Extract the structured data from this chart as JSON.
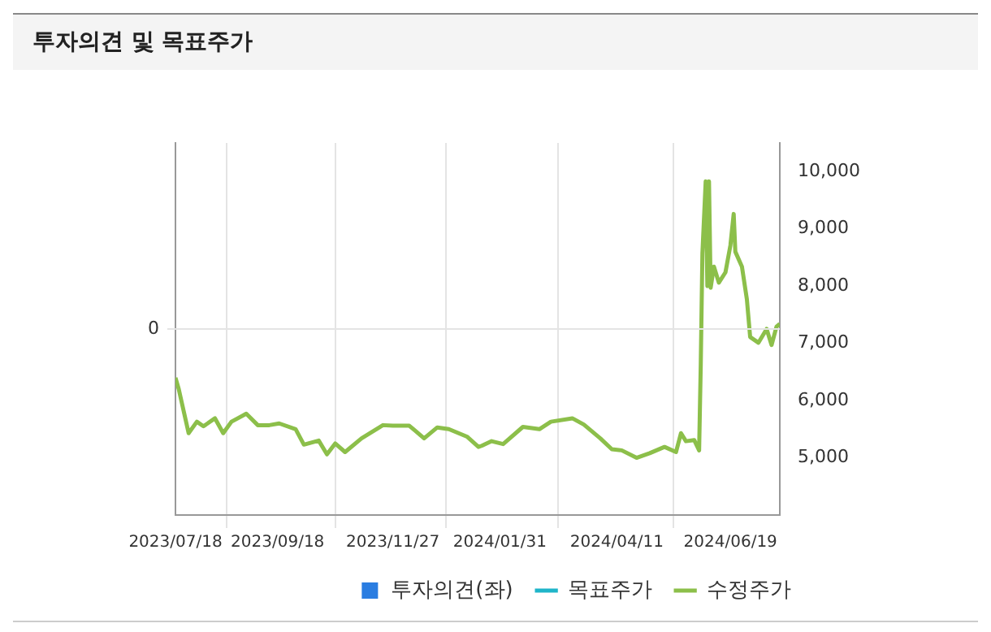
{
  "chart_data": {
    "type": "line",
    "title": "투자의견 및 목표주가",
    "xlim": [
      "2023-07-18",
      "2024-07-19"
    ],
    "xticks": [
      {
        "value": "2023-07-18",
        "label": "2023/07/18"
      },
      {
        "value": "2023-09-18",
        "label": "2023/09/18"
      },
      {
        "value": "2023-11-27",
        "label": "2023/11/27"
      },
      {
        "value": "2024-01-31",
        "label": "2024/01/31"
      },
      {
        "value": "2024-04-11",
        "label": "2024/04/11"
      },
      {
        "value": "2024-06-19",
        "label": "2024/06/19"
      }
    ],
    "annotations": [
      "0"
    ],
    "y2lim": [
      4000,
      10500
    ],
    "y2ticks": [
      {
        "value": 5000,
        "label": "5,000"
      },
      {
        "value": 6000,
        "label": "6,000"
      },
      {
        "value": 7000,
        "label": "7,000"
      },
      {
        "value": 8000,
        "label": "8,000"
      },
      {
        "value": 9000,
        "label": "9,000"
      },
      {
        "value": 10000,
        "label": "10,000"
      }
    ],
    "grid": "x",
    "legend": "bottom",
    "marker": "none",
    "series": [
      {
        "name": "투자의견(좌)",
        "type": "bar",
        "axis": "y",
        "color": "#2a7de1"
      },
      {
        "name": "목표주가",
        "type": "line",
        "axis": "y2",
        "color": "#1fb5c9"
      },
      {
        "name": "수정주가",
        "axis": "y2",
        "color": "#8cbf4a",
        "x": [
          "2023-07-18",
          "2023-07-20",
          "2023-07-26",
          "2023-07-31",
          "2023-08-04",
          "2023-08-11",
          "2023-08-16",
          "2023-08-21",
          "2023-08-30",
          "2023-09-06",
          "2023-09-13",
          "2023-09-19",
          "2023-09-29",
          "2023-10-04",
          "2023-10-13",
          "2023-10-18",
          "2023-10-23",
          "2023-10-29",
          "2023-11-08",
          "2023-11-21",
          "2023-11-27",
          "2023-12-07",
          "2023-12-16",
          "2023-12-24",
          "2023-12-31",
          "2024-01-11",
          "2024-01-18",
          "2024-01-20",
          "2024-01-26",
          "2024-02-02",
          "2024-02-14",
          "2024-02-24",
          "2024-03-02",
          "2024-03-15",
          "2024-03-22",
          "2024-04-01",
          "2024-04-08",
          "2024-04-14",
          "2024-04-23",
          "2024-05-01",
          "2024-05-10",
          "2024-05-17",
          "2024-05-20",
          "2024-05-23",
          "2024-05-28",
          "2024-05-31",
          "2024-06-01",
          "2024-06-02",
          "2024-06-04",
          "2024-06-05",
          "2024-06-06",
          "2024-06-07",
          "2024-06-09",
          "2024-06-12",
          "2024-06-16",
          "2024-06-19",
          "2024-06-21",
          "2024-06-22",
          "2024-06-26",
          "2024-06-29",
          "2024-07-01",
          "2024-07-06",
          "2024-07-11",
          "2024-07-14",
          "2024-07-17",
          "2024-07-19"
        ],
        "values": [
          6400,
          6200,
          5430,
          5630,
          5550,
          5690,
          5430,
          5630,
          5770,
          5570,
          5570,
          5600,
          5500,
          5230,
          5300,
          5060,
          5250,
          5100,
          5340,
          5570,
          5560,
          5560,
          5340,
          5530,
          5500,
          5370,
          5190,
          5210,
          5290,
          5240,
          5540,
          5500,
          5630,
          5690,
          5580,
          5340,
          5150,
          5130,
          5000,
          5080,
          5190,
          5100,
          5430,
          5290,
          5310,
          5130,
          6630,
          8570,
          9830,
          8000,
          9830,
          7970,
          8340,
          8060,
          8240,
          8710,
          9260,
          8600,
          8340,
          7770,
          7110,
          7010,
          7250,
          6970,
          7290,
          7340
        ]
      }
    ]
  }
}
